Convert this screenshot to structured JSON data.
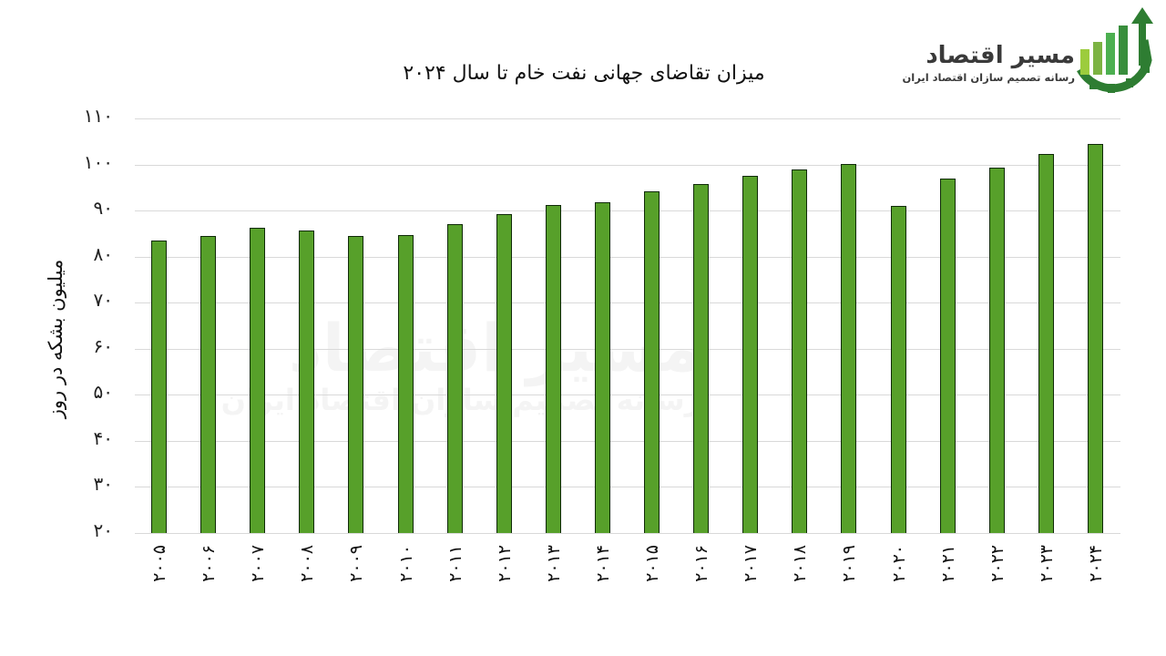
{
  "header": {
    "title": "میزان تقاضای جهانی نفت خام تا سال ۲۰۲۴"
  },
  "logo": {
    "name": "مسیر اقتصاد",
    "tagline": "رسانه تصمیم سازان اقتصاد ایران",
    "colors": {
      "dark_green": "#2e7d32",
      "light_green": "#8bc34a",
      "text": "#3a3a3a"
    }
  },
  "watermark": {
    "name": "مسیر اقتصاد",
    "tagline": "رسانه تصمیم سازان اقتصاد ایران"
  },
  "axis": {
    "y_label": "میلیون بشکه در روز",
    "y_ticks": [
      {
        "value": 110,
        "label": "۱۱۰"
      },
      {
        "value": 100,
        "label": "۱۰۰"
      },
      {
        "value": 90,
        "label": "۹۰"
      },
      {
        "value": 80,
        "label": "۸۰"
      },
      {
        "value": 70,
        "label": "۷۰"
      },
      {
        "value": 60,
        "label": "۶۰"
      },
      {
        "value": 50,
        "label": "۵۰"
      },
      {
        "value": 40,
        "label": "۴۰"
      },
      {
        "value": 30,
        "label": "۳۰"
      },
      {
        "value": 20,
        "label": "۲۰"
      }
    ]
  },
  "colors": {
    "bar_fill": "#57a02a",
    "bar_border": "#0f2a08",
    "grid": "#d9d9d9"
  },
  "chart_data": {
    "type": "bar",
    "title": "میزان تقاضای جهانی نفت خام تا سال ۲۰۲۴",
    "xlabel": "",
    "ylabel": "میلیون بشکه در روز",
    "ylim": [
      20,
      110
    ],
    "grid": true,
    "legend": null,
    "categories": [
      "2005",
      "2006",
      "2007",
      "2008",
      "2009",
      "2010",
      "2011",
      "2012",
      "2013",
      "2014",
      "2015",
      "2016",
      "2017",
      "2018",
      "2019",
      "2020",
      "2021",
      "2022",
      "2023",
      "2024"
    ],
    "category_labels": [
      "۲۰۰۵",
      "۲۰۰۶",
      "۲۰۰۷",
      "۲۰۰۸",
      "۲۰۰۹",
      "۲۰۱۰",
      "۲۰۱۱",
      "۲۰۱۲",
      "۲۰۱۳",
      "۲۰۱۴",
      "۲۰۱۵",
      "۲۰۱۶",
      "۲۰۱۷",
      "۲۰۱۸",
      "۲۰۱۹",
      "۲۰۲۰",
      "۲۰۲۱",
      "۲۰۲۲",
      "۲۰۲۳",
      "۲۰۲۴"
    ],
    "values": [
      83.5,
      84.5,
      86.3,
      85.7,
      84.5,
      84.7,
      87.0,
      89.2,
      91.2,
      91.9,
      94.1,
      95.7,
      97.6,
      99.0,
      100.2,
      91.1,
      97.0,
      99.4,
      102.2,
      104.4
    ]
  }
}
